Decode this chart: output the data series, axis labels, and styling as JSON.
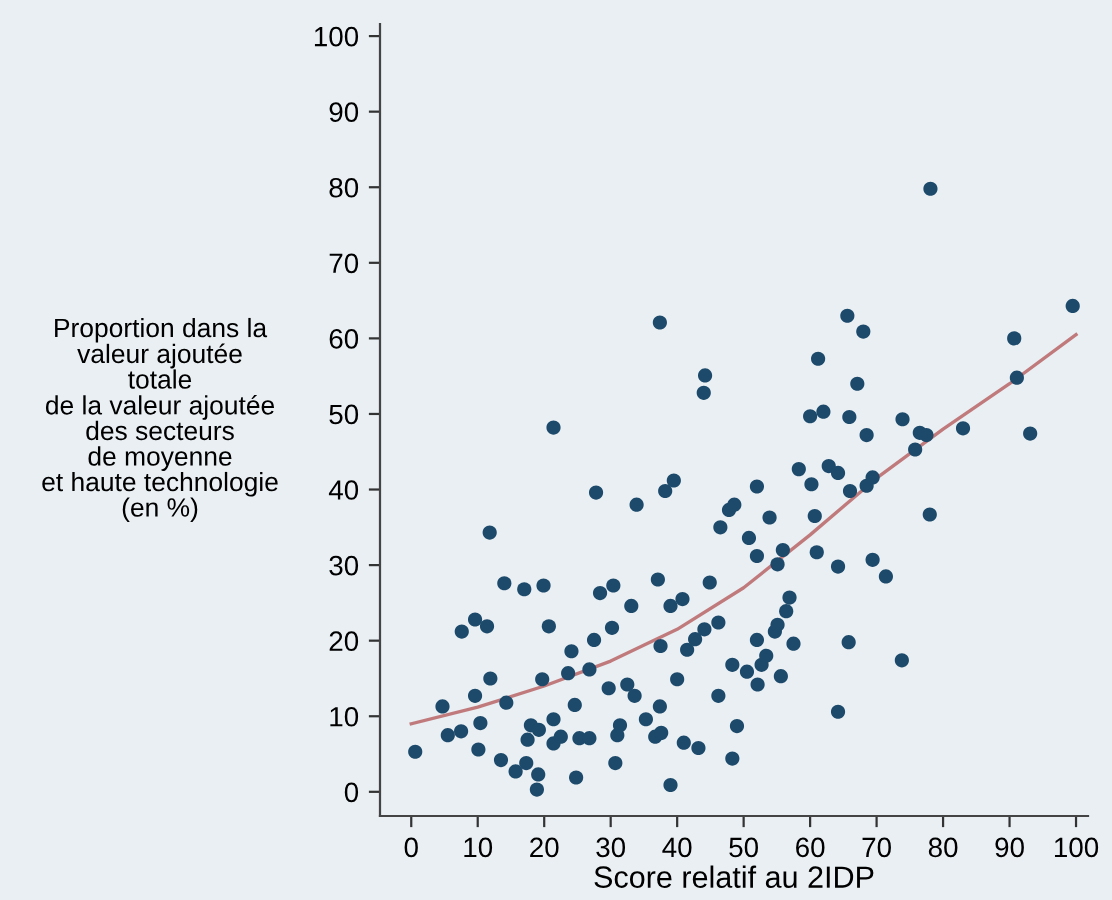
{
  "chart_data": {
    "type": "scatter",
    "xlabel": "Score relatif au 2IDP",
    "ylabel": "Proportion dans la\nvaleur ajoutée\ntotale\nde la valeur ajoutée\ndes secteurs\nde moyenne\net haute technologie\n(en %)",
    "xlim": [
      -4.7,
      101.8
    ],
    "ylim": [
      -3.2,
      101.6
    ],
    "xticks": [
      0,
      10,
      20,
      30,
      40,
      50,
      60,
      70,
      80,
      90,
      100
    ],
    "yticks": [
      0,
      10,
      20,
      30,
      40,
      50,
      60,
      70,
      80,
      90,
      100
    ],
    "grid": false,
    "legend": false,
    "series": [
      {
        "marker": "circle",
        "color": "#1d4a6b",
        "x": [
          0.6,
          4.7,
          5.5,
          7.5,
          7.6,
          9.6,
          11.4,
          9.6,
          10.4,
          10.1,
          11.9,
          11.8,
          13.5,
          14,
          14.3,
          15.7,
          17,
          17.3,
          17.5,
          18,
          19.2,
          19.1,
          18.9,
          19.9,
          19.7,
          20.7,
          21.4,
          21.4,
          21.4,
          22.5,
          23.6,
          24.1,
          24.6,
          24.8,
          25.3,
          26.8,
          26.8,
          27.5,
          27.8,
          28.4,
          29.7,
          30.4,
          30.2,
          30.7,
          31,
          31.4,
          32.5,
          33.1,
          33.6,
          33.9,
          35.3,
          36.7,
          37.4,
          37.1,
          37.5,
          37.4,
          37.6,
          38.2,
          39.5,
          39,
          39,
          40,
          40.8,
          41,
          41.5,
          42.7,
          43.2,
          44,
          44.2,
          44.1,
          44.9,
          46.2,
          46.5,
          47.8,
          48.6,
          48.3,
          48.3,
          49,
          46.2,
          50.5,
          50.8,
          52,
          52,
          52.1,
          52,
          52.7,
          53.4,
          53.9,
          54.7,
          55.1,
          55.1,
          55.9,
          55.6,
          56.4,
          56.9,
          57.5,
          58.3,
          60,
          60.2,
          60.7,
          61,
          61.2,
          62,
          62.8,
          64.2,
          64.2,
          64.2,
          65.6,
          65.9,
          66,
          65.8,
          67.1,
          68,
          68.5,
          68.5,
          69.4,
          69.4,
          71.4,
          73.8,
          73.9,
          75.8,
          76.5,
          77.5,
          78,
          78.1,
          83,
          90.7,
          91.1,
          93.1,
          99.5
        ],
        "values": [
          5.3,
          11.3,
          7.5,
          8,
          21.2,
          22.8,
          21.9,
          12.7,
          9.1,
          5.6,
          15,
          34.3,
          4.2,
          27.6,
          11.8,
          2.7,
          26.8,
          3.8,
          6.9,
          8.8,
          8.2,
          2.3,
          0.3,
          27.3,
          14.9,
          21.9,
          48.2,
          9.6,
          6.4,
          7.3,
          15.7,
          18.6,
          11.5,
          1.9,
          7.1,
          7.1,
          16.2,
          20.1,
          39.6,
          26.3,
          13.7,
          27.3,
          21.7,
          3.8,
          7.5,
          8.8,
          14.2,
          24.6,
          12.7,
          38,
          9.6,
          7.3,
          62.1,
          28.1,
          19.3,
          11.3,
          7.8,
          39.8,
          41.2,
          0.9,
          24.6,
          14.9,
          25.5,
          6.5,
          18.8,
          20.2,
          5.8,
          52.8,
          55.1,
          21.5,
          27.7,
          12.7,
          35,
          37.3,
          38,
          16.8,
          4.4,
          8.7,
          22.4,
          15.9,
          33.6,
          40.4,
          31.2,
          14.2,
          20.1,
          16.8,
          18,
          36.3,
          21.2,
          22.1,
          30.1,
          32,
          15.3,
          23.9,
          25.7,
          19.6,
          42.7,
          49.7,
          40.7,
          36.5,
          31.7,
          57.3,
          50.3,
          43.1,
          42.2,
          29.8,
          10.6,
          63,
          49.6,
          39.8,
          19.8,
          54,
          60.9,
          47.2,
          40.5,
          41.6,
          30.7,
          28.5,
          17.4,
          49.3,
          45.3,
          47.5,
          47.2,
          36.7,
          79.8,
          48.1,
          60,
          54.8,
          47.4,
          64.3
        ]
      },
      {
        "type": "line",
        "color": "#c07a7c",
        "x": [
          0,
          10,
          20,
          30,
          40,
          50,
          60,
          70,
          80,
          90,
          100
        ],
        "values": [
          9,
          11.2,
          14,
          17.3,
          21.5,
          27,
          34,
          41.5,
          48,
          54,
          60.5
        ]
      }
    ]
  }
}
